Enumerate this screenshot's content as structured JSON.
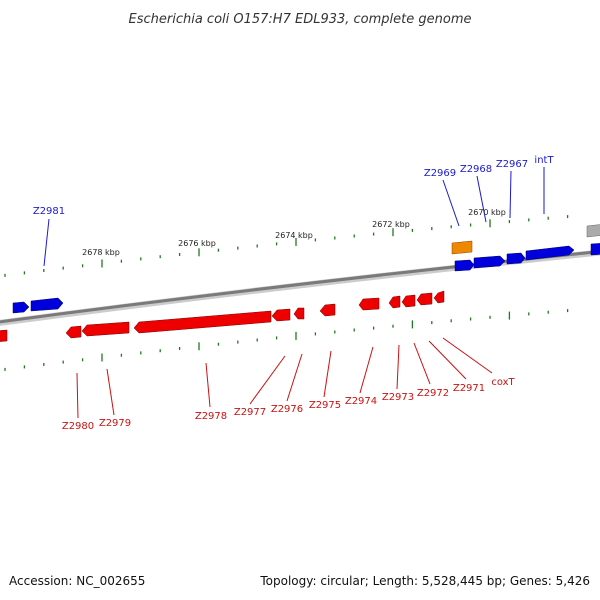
{
  "title": "Escherichia coli O157:H7 EDL933, complete genome",
  "footer": {
    "accession": "Accession: NC_002655",
    "summary": "Topology: circular; Length: 5,528,445 bp; Genes: 5,426"
  },
  "colors": {
    "forward_gene": "#0000dd",
    "reverse_gene": "#ee0000",
    "forward_label": "#1a1acc",
    "reverse_label": "#cc1111",
    "rna_feature": "#ee8800",
    "other_feature": "#aaaaaa",
    "backbone": "#7a7a7a",
    "tick": "#1e7a1e"
  },
  "ruler": {
    "labels": [
      "2670 kbp",
      "2672 kbp",
      "2674 kbp",
      "2676 kbp",
      "2678 kbp"
    ]
  },
  "forward_labels": [
    "intT",
    "Z2967",
    "Z2968",
    "Z2969",
    "Z2981"
  ],
  "reverse_labels": [
    "coxT",
    "Z2971",
    "Z2972",
    "Z2973",
    "Z2974",
    "Z2975",
    "Z2976",
    "Z2977",
    "Z2978",
    "Z2979",
    "Z2980"
  ]
}
